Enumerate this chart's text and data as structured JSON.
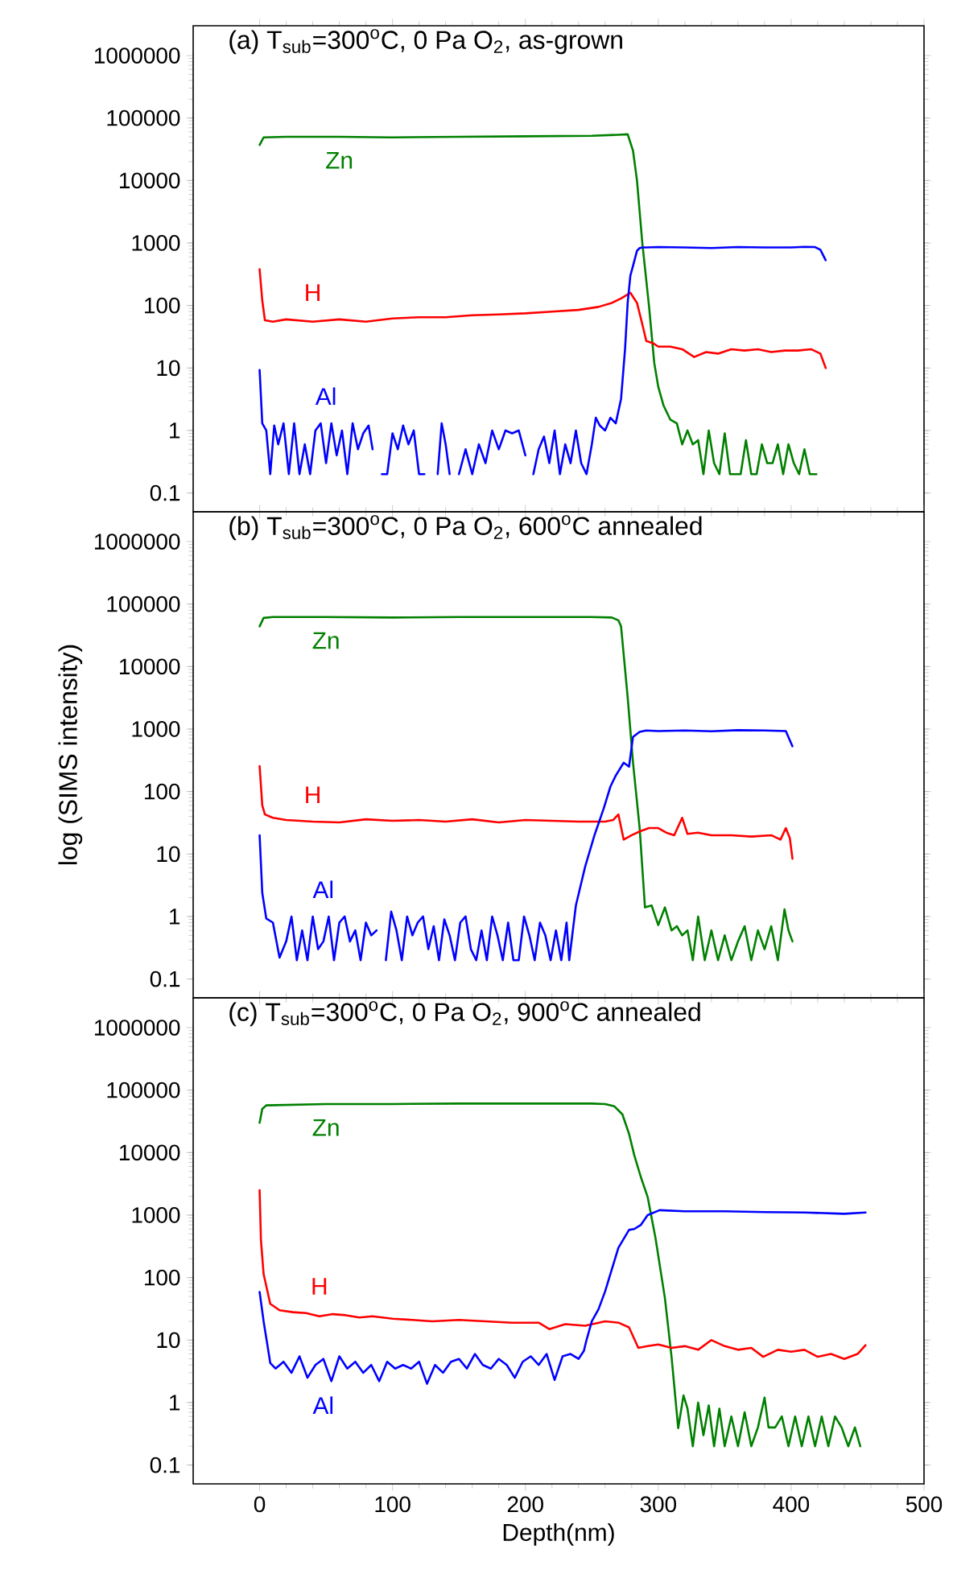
{
  "chart_data": [
    {
      "type": "line",
      "title": "(a) T$_{sub}$=300$^{o}$C, 0 Pa O$_{2}$, as-grown",
      "xlim": [
        -50,
        500
      ],
      "xticks": [
        0,
        100,
        200,
        300,
        400,
        500
      ],
      "ylim": [
        0.05,
        3000000
      ],
      "yticks": [
        0.1,
        1,
        10,
        100,
        1000,
        10000,
        100000,
        1000000
      ],
      "log": "y",
      "tick_labels": "y",
      "series": [
        {
          "name": "Zn",
          "color": "#008000",
          "x": [
            0,
            3,
            20,
            60,
            100,
            150,
            200,
            250,
            270,
            277,
            281,
            284,
            288,
            293,
            297,
            300,
            304,
            309,
            314,
            318,
            322,
            326,
            330,
            334,
            338,
            342,
            346,
            350,
            354,
            358,
            362,
            366,
            370,
            374,
            378,
            382,
            386,
            390,
            394,
            398,
            402,
            406,
            410,
            414,
            419
          ],
          "values": [
            37000,
            49000,
            50000,
            50000,
            49000,
            50000,
            51000,
            52000,
            54000,
            55000,
            30000,
            10000,
            1000,
            100,
            12,
            5,
            2.5,
            1.5,
            1.3,
            0.6,
            1,
            0.6,
            0.7,
            0.2,
            1,
            0.3,
            0.2,
            0.9,
            0.2,
            0.2,
            0.2,
            0.7,
            0.2,
            0.2,
            0.6,
            0.3,
            0.3,
            0.6,
            0.2,
            0.6,
            0.3,
            0.2,
            0.5,
            0.2,
            0.2
          ]
        },
        {
          "name": "H",
          "color": "#ff0000",
          "x": [
            0,
            2,
            4,
            10,
            20,
            40,
            60,
            80,
            100,
            120,
            140,
            160,
            180,
            200,
            220,
            240,
            255,
            265,
            272,
            279,
            284,
            288,
            291,
            296,
            300,
            309,
            318,
            327,
            336,
            345,
            355,
            365,
            375,
            385,
            395,
            405,
            415,
            422,
            426
          ],
          "values": [
            380,
            120,
            58,
            55,
            60,
            55,
            60,
            55,
            62,
            65,
            65,
            70,
            72,
            75,
            80,
            85,
            95,
            110,
            130,
            160,
            110,
            50,
            27,
            25,
            22,
            22,
            20,
            15,
            18,
            17,
            20,
            19,
            20,
            18,
            19,
            19,
            20,
            17,
            10
          ]
        },
        {
          "name": "Al",
          "color": "#0000ff",
          "x": [
            0,
            2,
            5,
            8,
            11,
            14,
            18,
            22,
            26,
            30,
            34,
            38,
            42,
            46,
            50,
            54,
            58,
            62,
            66,
            70,
            74,
            78,
            82,
            85,
            88,
            92,
            96,
            100,
            104,
            108,
            112,
            116,
            120,
            124,
            128,
            134,
            137,
            140,
            143,
            146,
            150,
            155,
            160,
            165,
            170,
            175,
            180,
            185,
            190,
            195,
            200,
            204,
            206,
            210,
            214,
            218,
            222,
            226,
            230,
            234,
            238,
            242,
            246,
            250,
            253,
            256,
            260,
            264,
            268,
            272,
            275,
            277,
            279,
            281,
            284,
            286,
            288,
            291,
            300,
            320,
            340,
            360,
            380,
            400,
            410,
            418,
            422,
            426
          ],
          "values": [
            9.3,
            1.3,
            1,
            0.2,
            1.2,
            0.6,
            1.3,
            0.2,
            1.3,
            0.2,
            0.6,
            0.2,
            1,
            1.3,
            0.3,
            1.3,
            0.4,
            1,
            0.2,
            1.3,
            0.5,
            0.9,
            1.2,
            0.5,
            null,
            0.2,
            0.2,
            0.9,
            0.5,
            1.2,
            0.6,
            1,
            0.2,
            0.2,
            null,
            0.2,
            1.3,
            0.6,
            0.2,
            null,
            0.2,
            0.5,
            0.2,
            0.6,
            0.3,
            1,
            0.5,
            1,
            0.9,
            1,
            0.4,
            null,
            0.2,
            0.5,
            0.8,
            0.3,
            1,
            0.2,
            0.6,
            0.3,
            1,
            0.3,
            0.2,
            0.6,
            1.6,
            1.2,
            1,
            1.6,
            1.3,
            3.2,
            20,
            112,
            300,
            430,
            750,
            830,
            850,
            850,
            860,
            850,
            830,
            860,
            850,
            850,
            870,
            860,
            780,
            530
          ]
        }
      ]
    },
    {
      "type": "line",
      "title": "(b) T$_{sub}$=300$^{o}$C, 0 Pa O$_{2}$, 600$^{o}$C annealed",
      "ylabel": "log (SIMS intensity)",
      "xlim": [
        -50,
        500
      ],
      "xticks": [
        0,
        100,
        200,
        300,
        400,
        500
      ],
      "ylim": [
        0.05,
        3000000
      ],
      "yticks": [
        0.1,
        1,
        10,
        100,
        1000,
        10000,
        100000,
        1000000
      ],
      "log": "y",
      "tick_labels": "y",
      "series": [
        {
          "name": "Zn",
          "color": "#008000",
          "x": [
            0,
            3,
            10,
            50,
            100,
            150,
            200,
            250,
            265,
            270,
            272,
            277,
            281,
            286,
            290,
            295,
            300,
            305,
            310,
            314,
            318,
            322,
            326,
            330,
            335,
            340,
            345,
            350,
            355,
            360,
            365,
            370,
            375,
            380,
            385,
            390,
            395,
            398,
            401
          ],
          "values": [
            44000,
            60000,
            62000,
            62000,
            61000,
            62000,
            62000,
            62000,
            61000,
            55000,
            44000,
            3200,
            290,
            26,
            1.4,
            1.5,
            0.73,
            1.4,
            0.6,
            0.7,
            0.5,
            0.6,
            0.2,
            1,
            0.2,
            0.6,
            0.2,
            0.5,
            0.2,
            0.4,
            0.7,
            0.2,
            0.6,
            0.3,
            0.7,
            0.2,
            1.3,
            0.6,
            0.4
          ]
        },
        {
          "name": "H",
          "color": "#ff0000",
          "x": [
            0,
            2,
            4,
            10,
            20,
            40,
            60,
            80,
            100,
            120,
            140,
            160,
            180,
            200,
            220,
            240,
            260,
            266,
            270,
            274,
            280,
            286,
            293,
            300,
            306,
            312,
            318,
            322,
            330,
            340,
            355,
            370,
            385,
            392,
            396,
            399,
            401
          ],
          "values": [
            256,
            60,
            43,
            38,
            35,
            33,
            32,
            36,
            34,
            35,
            33,
            36,
            32,
            35,
            34,
            33,
            33,
            35,
            43,
            17,
            20,
            23,
            26,
            26,
            22,
            20,
            38,
            21,
            22,
            20,
            20,
            19,
            20,
            17,
            26,
            18,
            8.4
          ]
        },
        {
          "name": "Al",
          "color": "#0000ff",
          "x": [
            0,
            2,
            5,
            10,
            15,
            20,
            24,
            28,
            32,
            36,
            40,
            44,
            48,
            52,
            56,
            60,
            64,
            68,
            72,
            76,
            80,
            84,
            88,
            92,
            95,
            99,
            103,
            107,
            111,
            115,
            119,
            123,
            127,
            131,
            135,
            139,
            143,
            147,
            151,
            155,
            159,
            163,
            167,
            171,
            175,
            179,
            183,
            187,
            191,
            195,
            199,
            203,
            207,
            211,
            215,
            219,
            223,
            227,
            231,
            233,
            238,
            245,
            252,
            259,
            264,
            268,
            274,
            278,
            281,
            286,
            291,
            300,
            320,
            340,
            360,
            380,
            396,
            401
          ],
          "values": [
            20,
            2.4,
            0.93,
            0.8,
            0.22,
            0.4,
            1,
            0.2,
            0.6,
            0.2,
            1,
            0.3,
            0.4,
            1,
            0.2,
            0.8,
            1,
            0.4,
            0.6,
            0.2,
            0.8,
            0.5,
            0.6,
            null,
            0.2,
            1.2,
            0.6,
            0.2,
            1,
            0.5,
            0.8,
            1,
            0.3,
            0.7,
            0.2,
            0.9,
            0.5,
            0.2,
            0.8,
            1,
            0.3,
            0.2,
            0.6,
            0.2,
            1,
            0.5,
            0.2,
            0.8,
            0.2,
            0.2,
            1,
            0.5,
            0.2,
            0.8,
            0.5,
            0.2,
            0.6,
            0.2,
            0.8,
            0.2,
            1.5,
            6.3,
            20,
            54,
            120,
            180,
            290,
            250,
            750,
            900,
            950,
            930,
            950,
            920,
            960,
            950,
            930,
            530
          ]
        }
      ]
    },
    {
      "type": "line",
      "title": "(c) T$_{sub}$=300$^{o}$C, 0 Pa O$_{2}$, 900$^{o}$C annealed",
      "xlabel": "Depth(nm)",
      "xlim": [
        -50,
        500
      ],
      "xticks": [
        0,
        100,
        200,
        300,
        400,
        500
      ],
      "ylim": [
        0.05,
        3000000
      ],
      "yticks": [
        0.1,
        1,
        10,
        100,
        1000,
        10000,
        100000,
        1000000
      ],
      "log": "y",
      "series": [
        {
          "name": "Zn",
          "color": "#008000",
          "x": [
            0,
            2,
            5,
            50,
            100,
            150,
            200,
            250,
            260,
            267,
            273,
            278,
            282,
            287,
            292,
            298,
            305,
            310,
            315,
            319,
            322,
            326,
            330,
            334,
            338,
            342,
            346,
            350,
            355,
            360,
            365,
            370,
            375,
            380,
            383,
            388,
            393,
            398,
            403,
            408,
            413,
            418,
            423,
            428,
            433,
            438,
            443,
            448,
            452
          ],
          "values": [
            30000,
            50000,
            57000,
            60000,
            60000,
            61000,
            61000,
            61000,
            60000,
            55000,
            41000,
            20000,
            9000,
            4000,
            1960,
            420,
            47,
            5.4,
            0.39,
            1.3,
            0.8,
            0.2,
            1,
            0.3,
            0.9,
            0.2,
            0.8,
            0.2,
            0.6,
            0.2,
            0.7,
            0.2,
            0.4,
            1.2,
            0.4,
            0.4,
            0.6,
            0.2,
            0.6,
            0.2,
            0.6,
            0.2,
            0.6,
            0.2,
            0.6,
            0.4,
            0.2,
            0.4,
            0.2
          ]
        },
        {
          "name": "H",
          "color": "#ff0000",
          "x": [
            0,
            1,
            3,
            8,
            15,
            25,
            35,
            45,
            55,
            65,
            75,
            85,
            100,
            115,
            130,
            150,
            170,
            190,
            210,
            218,
            230,
            245,
            260,
            270,
            278,
            285,
            292,
            300,
            310,
            320,
            330,
            340,
            350,
            360,
            370,
            379,
            390,
            400,
            410,
            420,
            430,
            440,
            450,
            456
          ],
          "values": [
            2500,
            400,
            114,
            38,
            30,
            28,
            27,
            24,
            26,
            25,
            23,
            24,
            22,
            21,
            20,
            21,
            20,
            19,
            19,
            15,
            18,
            17,
            20,
            19,
            16,
            7.5,
            8,
            8.5,
            7.5,
            8,
            7,
            10,
            8,
            7,
            7.5,
            5.4,
            7,
            6.5,
            7,
            5.4,
            6,
            5,
            6,
            8.3
          ]
        },
        {
          "name": "Al",
          "color": "#0000ff",
          "x": [
            0,
            3,
            6,
            8,
            12,
            18,
            24,
            30,
            36,
            42,
            48,
            54,
            60,
            66,
            72,
            78,
            84,
            90,
            96,
            102,
            108,
            114,
            120,
            126,
            132,
            138,
            144,
            150,
            156,
            162,
            168,
            174,
            180,
            186,
            192,
            198,
            204,
            210,
            216,
            222,
            228,
            234,
            240,
            244,
            246,
            250,
            255,
            260,
            264,
            270,
            278,
            282,
            287,
            292,
            301,
            320,
            350,
            380,
            410,
            440,
            456
          ],
          "values": [
            59,
            20,
            8,
            4.3,
            3.5,
            4.5,
            3,
            5.5,
            2.5,
            4,
            5,
            2.2,
            5.5,
            3.5,
            4.5,
            3,
            4,
            2.2,
            4.5,
            3.5,
            4,
            3.5,
            4.5,
            2,
            4,
            3,
            4.5,
            5,
            3.5,
            6,
            4,
            3.5,
            5,
            4,
            2.5,
            4.5,
            5.5,
            4,
            6,
            2.3,
            5.5,
            6,
            5,
            6.7,
            10,
            20,
            31,
            60,
            114,
            300,
            580,
            600,
            700,
            1000,
            1200,
            1150,
            1150,
            1120,
            1100,
            1050,
            1100
          ]
        }
      ]
    }
  ]
}
